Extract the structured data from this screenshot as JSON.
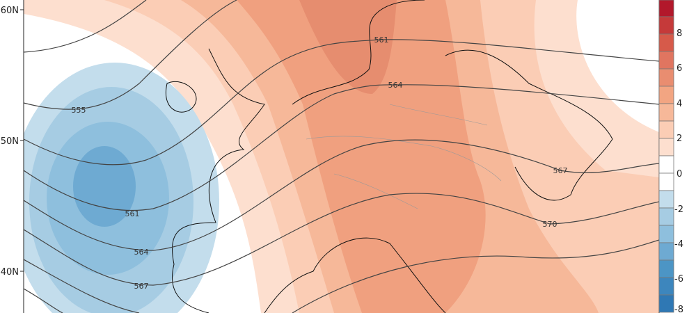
{
  "map": {
    "latitude_labels": [
      "60N",
      "50N",
      "40N"
    ],
    "contour_labels": [
      "555",
      "561",
      "561",
      "564",
      "564",
      "567",
      "567",
      "570"
    ]
  },
  "colorbar": {
    "tick_labels": [
      "8",
      "6",
      "4",
      "2",
      "0",
      "-2",
      "-4",
      "-6",
      "-8"
    ],
    "levels": [
      10,
      9,
      8,
      7,
      6,
      5,
      4,
      3,
      2,
      1,
      0,
      -1,
      -2,
      -3,
      -4,
      -5,
      -6,
      -7,
      -8
    ],
    "colors": [
      "#b2182b",
      "#c53a3a",
      "#d65a4a",
      "#e07560",
      "#e98d70",
      "#f2a582",
      "#f6b899",
      "#fbcdb5",
      "#fddfcf",
      "#ffffff",
      "#ffffff",
      "#c3ddec",
      "#a6cce3",
      "#8ebfdd",
      "#6eaad2",
      "#4c95c5",
      "#3d86bd",
      "#2f78b4"
    ]
  }
}
